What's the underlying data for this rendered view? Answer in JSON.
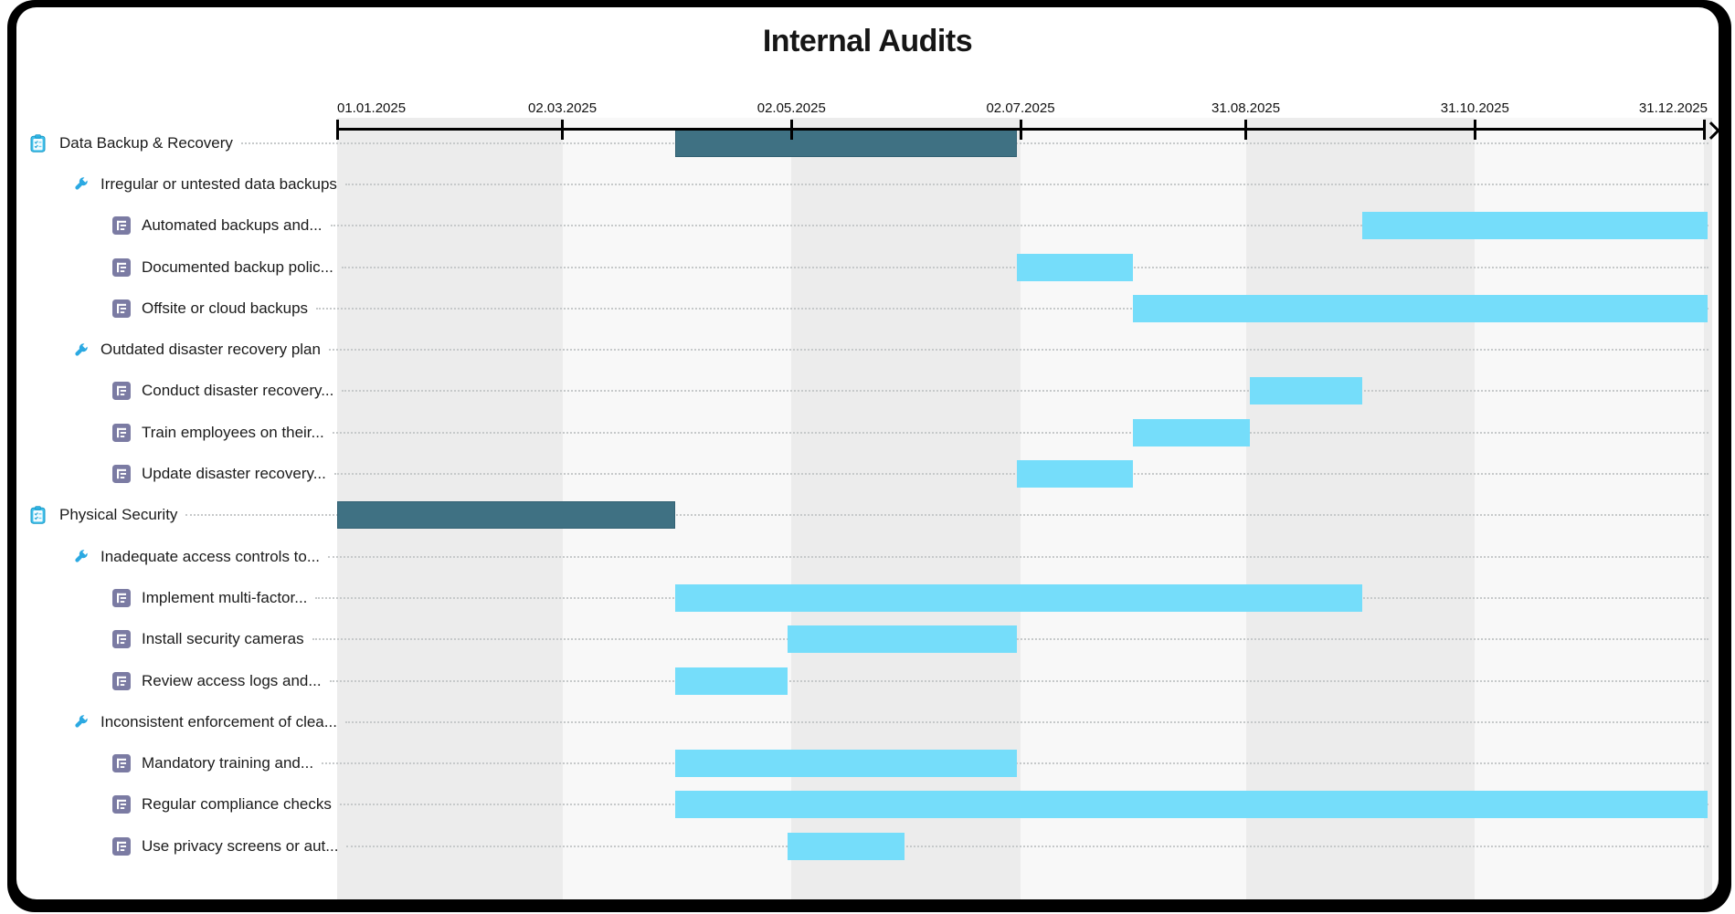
{
  "title": "Internal Audits",
  "colors": {
    "category_bar": "#3F7183",
    "task_bar": "#75DDFA",
    "stripe_dark": "#ECECEC",
    "stripe_light": "#F8F8F8",
    "axis": "#000000",
    "leader_dots": "#C6C9CA",
    "icon_task_bg": "#7B7BA3",
    "icon_wrench": "#2BA9E2",
    "icon_clipboard": "#3FC0EC"
  },
  "chart_data": {
    "type": "bar",
    "subtype": "gantt",
    "title": "Internal Audits",
    "x_axis": {
      "start": "01.01.2025",
      "end": "31.12.2025",
      "tick_labels": [
        "01.01.2025",
        "02.03.2025",
        "02.05.2025",
        "02.07.2025",
        "31.08.2025",
        "31.10.2025",
        "31.12.2025"
      ],
      "grid": "alternating-vertical-bands",
      "arrow_end": true
    },
    "tasks": [
      {
        "label": "Data Backup & Recovery",
        "level": "category",
        "icon": "clipboard-icon",
        "bar": {
          "start": "01.04.2025",
          "end": "30.06.2025"
        }
      },
      {
        "label": "Irregular or untested data backups",
        "level": "issue",
        "icon": "wrench-icon",
        "bar": null
      },
      {
        "label": "Automated backups and...",
        "level": "task",
        "icon": "task-icon",
        "bar": {
          "start": "01.10.2025",
          "end": "31.12.2025"
        }
      },
      {
        "label": "Documented backup polic...",
        "level": "task",
        "icon": "task-icon",
        "bar": {
          "start": "01.07.2025",
          "end": "31.07.2025"
        }
      },
      {
        "label": "Offsite or cloud backups",
        "level": "task",
        "icon": "task-icon",
        "bar": {
          "start": "01.08.2025",
          "end": "31.12.2025"
        }
      },
      {
        "label": "Outdated disaster recovery plan",
        "level": "issue",
        "icon": "wrench-icon",
        "bar": null
      },
      {
        "label": "Conduct disaster recovery...",
        "level": "task",
        "icon": "task-icon",
        "bar": {
          "start": "01.09.2025",
          "end": "30.09.2025"
        }
      },
      {
        "label": "Train employees on their...",
        "level": "task",
        "icon": "task-icon",
        "bar": {
          "start": "01.08.2025",
          "end": "31.08.2025"
        }
      },
      {
        "label": "Update disaster recovery...",
        "level": "task",
        "icon": "task-icon",
        "bar": {
          "start": "01.07.2025",
          "end": "31.07.2025"
        }
      },
      {
        "label": "Physical Security",
        "level": "category",
        "icon": "clipboard-icon",
        "bar": {
          "start": "01.01.2025",
          "end": "31.03.2025"
        }
      },
      {
        "label": "Inadequate access controls to...",
        "level": "issue",
        "icon": "wrench-icon",
        "bar": null
      },
      {
        "label": "Implement multi-factor...",
        "level": "task",
        "icon": "task-icon",
        "bar": {
          "start": "01.04.2025",
          "end": "30.09.2025"
        }
      },
      {
        "label": "Install security cameras",
        "level": "task",
        "icon": "task-icon",
        "bar": {
          "start": "01.05.2025",
          "end": "30.06.2025"
        }
      },
      {
        "label": "Review access logs and...",
        "level": "task",
        "icon": "task-icon",
        "bar": {
          "start": "01.04.2025",
          "end": "30.04.2025"
        }
      },
      {
        "label": "Inconsistent enforcement of clea...",
        "level": "issue",
        "icon": "wrench-icon",
        "bar": null
      },
      {
        "label": "Mandatory training and...",
        "level": "task",
        "icon": "task-icon",
        "bar": {
          "start": "01.04.2025",
          "end": "30.06.2025"
        }
      },
      {
        "label": "Regular compliance checks",
        "level": "task",
        "icon": "task-icon",
        "bar": {
          "start": "01.04.2025",
          "end": "31.12.2025"
        }
      },
      {
        "label": "Use privacy screens or aut...",
        "level": "task",
        "icon": "task-icon",
        "bar": {
          "start": "01.05.2025",
          "end": "31.05.2025"
        }
      }
    ]
  }
}
